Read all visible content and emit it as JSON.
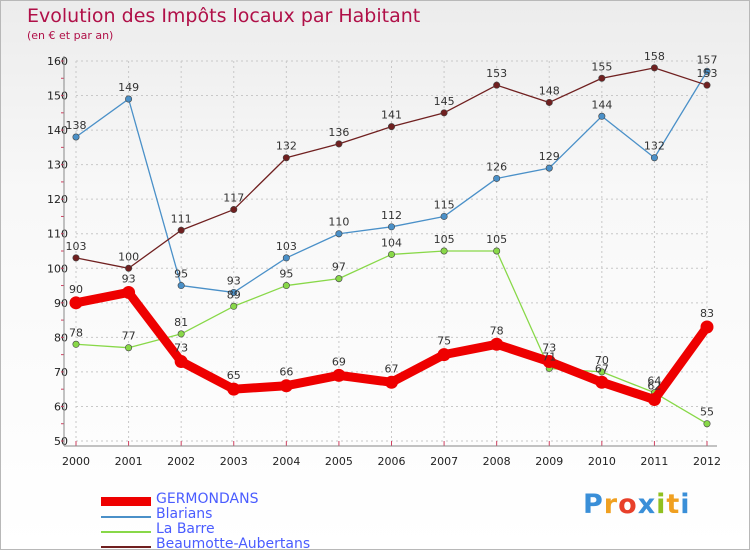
{
  "header": {
    "title": "Evolution des Impôts locaux par Habitant",
    "subtitle": "(en € et par an)"
  },
  "logo": {
    "text": "Proxiti",
    "colors": [
      "#3a8fd8",
      "#f0a020",
      "#e8402a",
      "#3a8fd8",
      "#90c020",
      "#f0a020",
      "#3a8fd8"
    ]
  },
  "chart_data": {
    "type": "line",
    "title": "Evolution des Impôts locaux par Habitant",
    "subtitle": "(en € et par an)",
    "xlabel": "",
    "ylabel": "",
    "x": [
      "2000",
      "2001",
      "2002",
      "2003",
      "2004",
      "2005",
      "2006",
      "2007",
      "2008",
      "2009",
      "2010",
      "2011",
      "2012"
    ],
    "ylim": [
      50,
      160
    ],
    "yticks": [
      50,
      60,
      70,
      80,
      90,
      100,
      110,
      120,
      130,
      140,
      150,
      160
    ],
    "grid": true,
    "legend_position": "bottom-left",
    "series": [
      {
        "name": "GERMONDANS",
        "color": "#ee0000",
        "emphasis": "thick",
        "values": [
          90,
          93,
          73,
          65,
          66,
          69,
          67,
          75,
          78,
          73,
          67,
          62,
          83
        ]
      },
      {
        "name": "Blarians",
        "color": "#4a90c8",
        "emphasis": "thin",
        "values": [
          138,
          149,
          95,
          93,
          103,
          110,
          112,
          115,
          126,
          129,
          144,
          132,
          157
        ]
      },
      {
        "name": "La Barre",
        "color": "#88d848",
        "emphasis": "thin",
        "values": [
          78,
          77,
          81,
          89,
          95,
          97,
          104,
          105,
          105,
          71,
          70,
          64,
          55
        ]
      },
      {
        "name": "Beaumotte-Aubertans",
        "color": "#702020",
        "emphasis": "thin",
        "values": [
          103,
          100,
          111,
          117,
          132,
          136,
          141,
          145,
          153,
          148,
          155,
          158,
          153
        ]
      }
    ]
  }
}
